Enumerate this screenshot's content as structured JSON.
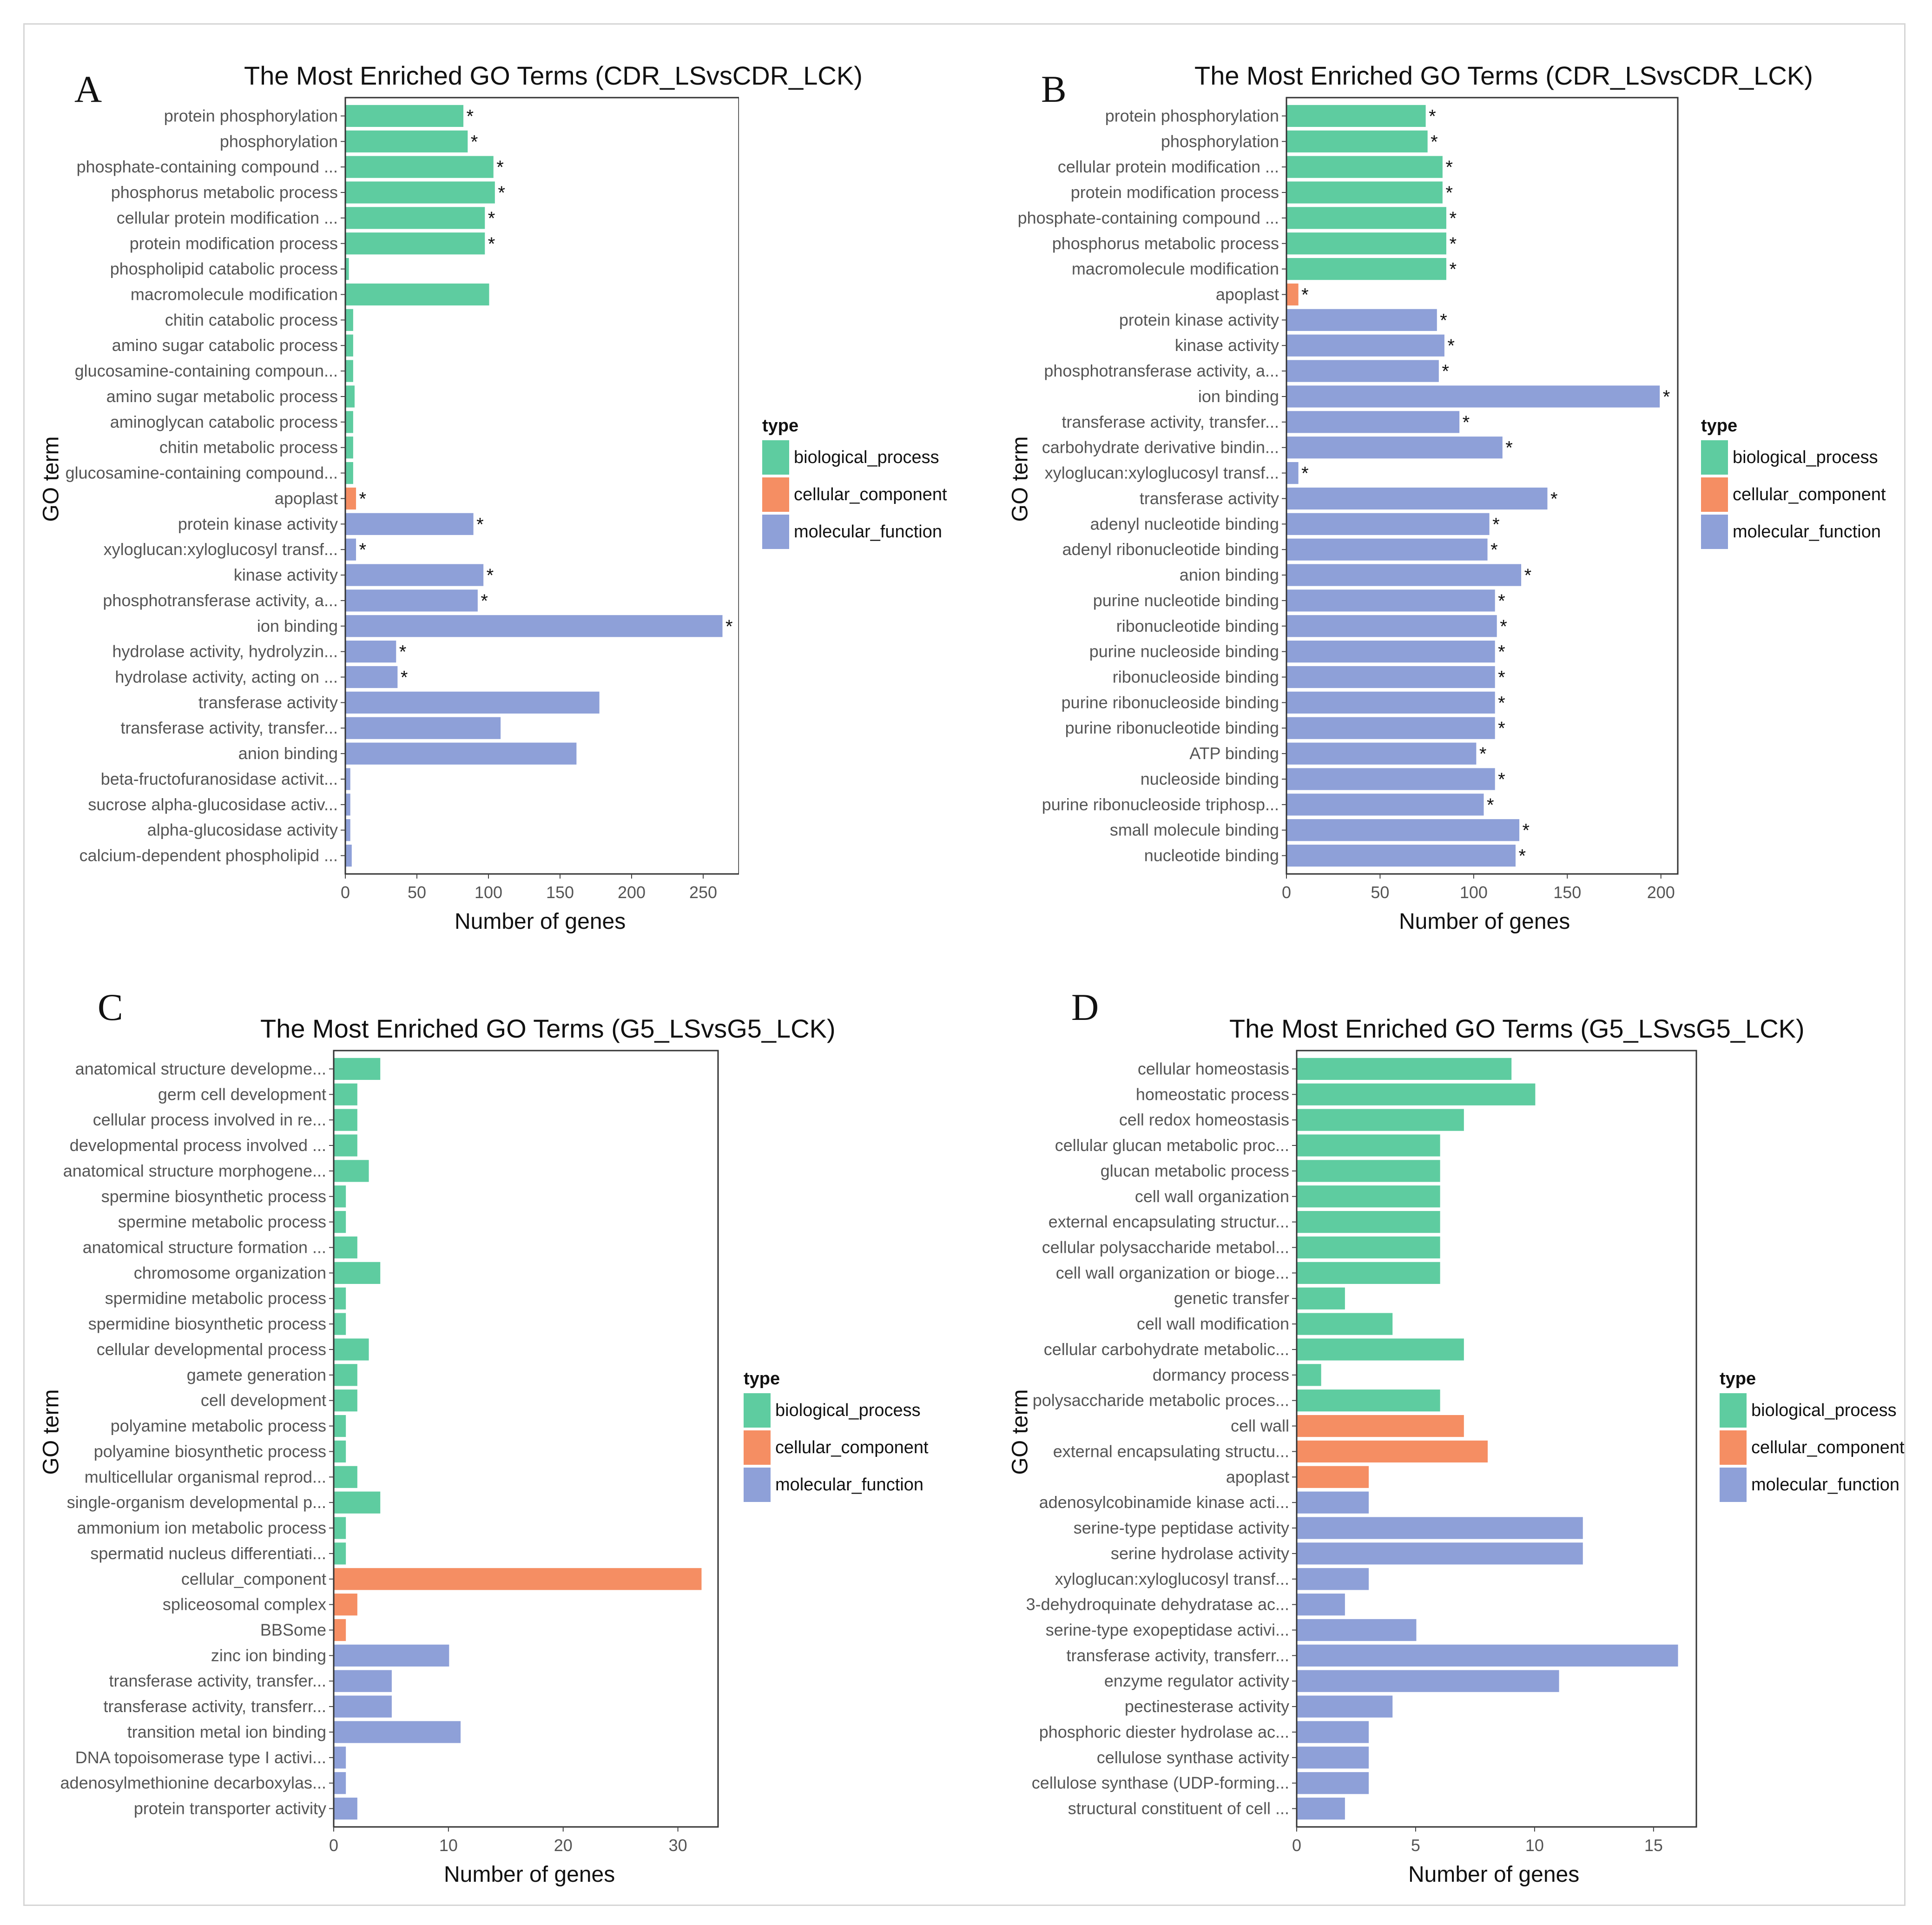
{
  "legend": {
    "title": "type",
    "items": [
      {
        "key": "bp",
        "label": "biological_process",
        "color": "#5ECCA0"
      },
      {
        "key": "cc",
        "label": "cellular_component",
        "color": "#F58E63"
      },
      {
        "key": "mf",
        "label": "molecular_function",
        "color": "#8EA0D8"
      }
    ]
  },
  "chart_data": [
    {
      "panel": "A",
      "type": "bar",
      "orientation": "horizontal",
      "title": "The Most Enriched GO Terms (CDR_LSvsCDR_LCK)",
      "xlabel": "Number of genes",
      "ylabel": "GO term",
      "xlim": [
        0,
        275
      ],
      "xticks": [
        0,
        50,
        100,
        150,
        200,
        250
      ],
      "categories": [
        "protein phosphorylation",
        "phosphorylation",
        "phosphate-containing compound ...",
        "phosphorus metabolic process",
        "cellular protein modification ...",
        "protein modification process",
        "phospholipid catabolic process",
        "macromolecule modification",
        "chitin catabolic process",
        "amino sugar catabolic process",
        "glucosamine-containing compoun...",
        "amino sugar metabolic process",
        "aminoglycan catabolic process",
        "chitin metabolic process",
        "glucosamine-containing compound...",
        "apoplast",
        "protein kinase activity",
        "xyloglucan:xyloglucosyl transf...",
        "kinase activity",
        "phosphotransferase activity, a...",
        "ion binding",
        "hydrolase activity, hydrolyzin...",
        "hydrolase activity, acting on ...",
        "transferase activity",
        "transferase activity, transfer...",
        "anion binding",
        "beta-fructofuranosidase activit...",
        "sucrose alpha-glucosidase activ...",
        "alpha-glucosidase activity",
        "calcium-dependent phospholipid ..."
      ],
      "values": [
        82,
        85,
        103,
        104,
        97,
        97,
        2,
        100,
        5,
        5,
        5,
        6,
        5,
        5,
        5,
        7,
        89,
        7,
        96,
        92,
        263,
        35,
        36,
        177,
        108,
        161,
        3,
        3,
        3,
        4
      ],
      "types": [
        "bp",
        "bp",
        "bp",
        "bp",
        "bp",
        "bp",
        "bp",
        "bp",
        "bp",
        "bp",
        "bp",
        "bp",
        "bp",
        "bp",
        "bp",
        "cc",
        "mf",
        "mf",
        "mf",
        "mf",
        "mf",
        "mf",
        "mf",
        "mf",
        "mf",
        "mf",
        "mf",
        "mf",
        "mf",
        "mf"
      ],
      "significant": [
        true,
        true,
        true,
        true,
        true,
        true,
        false,
        false,
        false,
        false,
        false,
        false,
        false,
        false,
        false,
        true,
        true,
        true,
        true,
        true,
        true,
        true,
        true,
        false,
        false,
        false,
        false,
        false,
        false,
        false
      ],
      "significance_mark": "*"
    },
    {
      "panel": "B",
      "type": "bar",
      "orientation": "horizontal",
      "title": "The Most Enriched GO Terms (CDR_LSvsCDR_LCK)",
      "xlabel": "Number of genes",
      "ylabel": "GO term",
      "xlim": [
        0,
        209
      ],
      "xticks": [
        0,
        50,
        100,
        150,
        200
      ],
      "categories": [
        "protein phosphorylation",
        "phosphorylation",
        "cellular protein modification ...",
        "protein modification process",
        "phosphate-containing compound ...",
        "phosphorus metabolic process",
        "macromolecule modification",
        "apoplast",
        "protein kinase activity",
        "kinase activity",
        "phosphotransferase activity, a...",
        "ion binding",
        "transferase activity, transfer...",
        "carbohydrate derivative bindin...",
        "xyloglucan:xyloglucosyl transf...",
        "transferase activity",
        "adenyl nucleotide binding",
        "adenyl ribonucleotide binding",
        "anion binding",
        "purine nucleotide binding",
        "ribonucleotide binding",
        "purine nucleoside binding",
        "ribonucleoside binding",
        "purine ribonucleoside binding",
        "purine ribonucleotide binding",
        "ATP binding",
        "nucleoside binding",
        "purine ribonucleoside triphosp...",
        "small molecule binding",
        "nucleotide binding"
      ],
      "values": [
        74,
        75,
        83,
        83,
        85,
        85,
        85,
        6,
        80,
        84,
        81,
        199,
        92,
        115,
        6,
        139,
        108,
        107,
        125,
        111,
        112,
        111,
        111,
        111,
        111,
        101,
        111,
        105,
        124,
        122
      ],
      "types": [
        "bp",
        "bp",
        "bp",
        "bp",
        "bp",
        "bp",
        "bp",
        "cc",
        "mf",
        "mf",
        "mf",
        "mf",
        "mf",
        "mf",
        "mf",
        "mf",
        "mf",
        "mf",
        "mf",
        "mf",
        "mf",
        "mf",
        "mf",
        "mf",
        "mf",
        "mf",
        "mf",
        "mf",
        "mf",
        "mf"
      ],
      "significant": [
        true,
        true,
        true,
        true,
        true,
        true,
        true,
        true,
        true,
        true,
        true,
        true,
        true,
        true,
        true,
        true,
        true,
        true,
        true,
        true,
        true,
        true,
        true,
        true,
        true,
        true,
        true,
        true,
        true,
        true
      ],
      "significance_mark": "*"
    },
    {
      "panel": "C",
      "type": "bar",
      "orientation": "horizontal",
      "title": "The Most Enriched GO Terms (G5_LSvsG5_LCK)",
      "xlabel": "Number of genes",
      "ylabel": "GO term",
      "xlim": [
        0,
        33.5
      ],
      "xticks": [
        0,
        10,
        20,
        30
      ],
      "categories": [
        "anatomical structure developme...",
        "germ cell development",
        "cellular process involved in re...",
        "developmental process involved ...",
        "anatomical structure morphogene...",
        "spermine biosynthetic process",
        "spermine metabolic process",
        "anatomical structure formation ...",
        "chromosome organization",
        "spermidine metabolic process",
        "spermidine biosynthetic process",
        "cellular developmental process",
        "gamete generation",
        "cell development",
        "polyamine metabolic process",
        "polyamine biosynthetic process",
        "multicellular organismal reprod...",
        "single-organism developmental p...",
        "ammonium ion metabolic process",
        "spermatid nucleus differentiati...",
        "cellular_component",
        "spliceosomal complex",
        "BBSome",
        "zinc ion binding",
        "transferase activity, transfer...",
        "transferase activity, transferr...",
        "transition metal ion binding",
        "DNA topoisomerase type I activi...",
        "adenosylmethionine decarboxylas...",
        "protein transporter activity"
      ],
      "values": [
        4,
        2,
        2,
        2,
        3,
        1,
        1,
        2,
        4,
        1,
        1,
        3,
        2,
        2,
        1,
        1,
        2,
        4,
        1,
        1,
        32,
        2,
        1,
        10,
        5,
        5,
        11,
        1,
        1,
        2
      ],
      "types": [
        "bp",
        "bp",
        "bp",
        "bp",
        "bp",
        "bp",
        "bp",
        "bp",
        "bp",
        "bp",
        "bp",
        "bp",
        "bp",
        "bp",
        "bp",
        "bp",
        "bp",
        "bp",
        "bp",
        "bp",
        "cc",
        "cc",
        "cc",
        "mf",
        "mf",
        "mf",
        "mf",
        "mf",
        "mf",
        "mf"
      ],
      "significant": [
        false,
        false,
        false,
        false,
        false,
        false,
        false,
        false,
        false,
        false,
        false,
        false,
        false,
        false,
        false,
        false,
        false,
        false,
        false,
        false,
        false,
        false,
        false,
        false,
        false,
        false,
        false,
        false,
        false,
        false
      ],
      "significance_mark": "*"
    },
    {
      "panel": "D",
      "type": "bar",
      "orientation": "horizontal",
      "title": "The Most Enriched GO Terms (G5_LSvsG5_LCK)",
      "xlabel": "Number of genes",
      "ylabel": "GO term",
      "xlim": [
        0,
        16.8
      ],
      "xticks": [
        0,
        5,
        10,
        15
      ],
      "categories": [
        "cellular homeostasis",
        "homeostatic process",
        "cell redox homeostasis",
        "cellular glucan metabolic proc...",
        "glucan metabolic process",
        "cell wall organization",
        "external encapsulating structur...",
        "cellular polysaccharide metabol...",
        "cell wall organization or bioge...",
        "genetic transfer",
        "cell wall modification",
        "cellular carbohydrate metabolic...",
        "dormancy process",
        "polysaccharide metabolic proces...",
        "cell wall",
        "external encapsulating structu...",
        "apoplast",
        "adenosylcobinamide kinase acti...",
        "serine-type peptidase activity",
        "serine hydrolase activity",
        "xyloglucan:xyloglucosyl transf...",
        "3-dehydroquinate dehydratase ac...",
        "serine-type exopeptidase activi...",
        "transferase activity, transferr...",
        "enzyme regulator activity",
        "pectinesterase activity",
        "phosphoric diester hydrolase ac...",
        "cellulose synthase activity",
        "cellulose synthase (UDP-forming...",
        "structural constituent of cell ..."
      ],
      "values": [
        9,
        10,
        7,
        6,
        6,
        6,
        6,
        6,
        6,
        2,
        4,
        7,
        1,
        6,
        7,
        8,
        3,
        3,
        12,
        12,
        3,
        2,
        5,
        16,
        11,
        4,
        3,
        3,
        3,
        2
      ],
      "types": [
        "bp",
        "bp",
        "bp",
        "bp",
        "bp",
        "bp",
        "bp",
        "bp",
        "bp",
        "bp",
        "bp",
        "bp",
        "bp",
        "bp",
        "cc",
        "cc",
        "cc",
        "mf",
        "mf",
        "mf",
        "mf",
        "mf",
        "mf",
        "mf",
        "mf",
        "mf",
        "mf",
        "mf",
        "mf",
        "mf"
      ],
      "significant": [
        false,
        false,
        false,
        false,
        false,
        false,
        false,
        false,
        false,
        false,
        false,
        false,
        false,
        false,
        false,
        false,
        false,
        false,
        false,
        false,
        false,
        false,
        false,
        false,
        false,
        false,
        false,
        false,
        false,
        false
      ],
      "significance_mark": "*"
    }
  ]
}
